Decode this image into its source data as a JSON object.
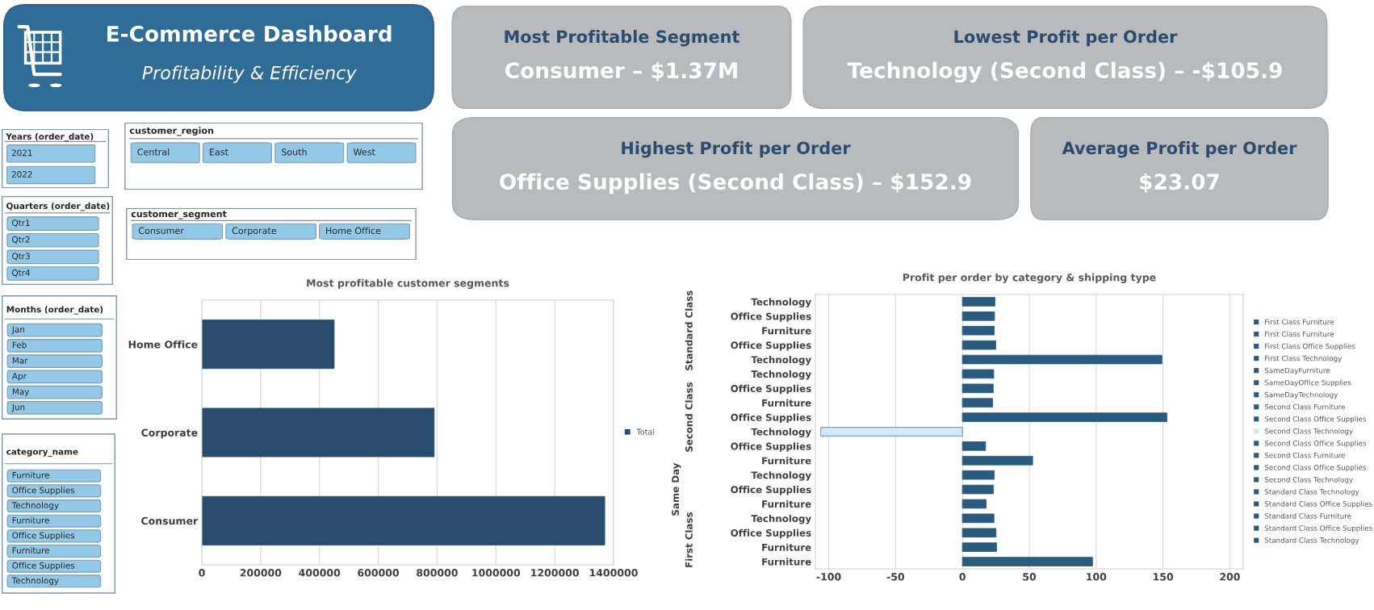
{
  "chart_data": [
    {
      "type": "other",
      "title": "E-Commerce Dashboard",
      "subtitle": "Profitability & Efficiency"
    },
    {
      "type": "other",
      "title": "Most Profitable Segment",
      "annotations": [
        "Consumer – $1.37M"
      ]
    },
    {
      "type": "other",
      "title": "Lowest Profit per Order",
      "annotations": [
        "Technology (Second Class) – -$105.9"
      ]
    },
    {
      "type": "other",
      "title": "Highest Profit per Order",
      "annotations": [
        "Office Supplies (Second Class) – $152.9"
      ]
    },
    {
      "type": "other",
      "title": "Average Profit per Order",
      "annotations": [
        "$23.07"
      ]
    },
    {
      "type": "other",
      "title": "Years (order_date)",
      "annotations": [
        "2021",
        "2022"
      ]
    },
    {
      "type": "other",
      "title": "customer_region",
      "annotations": [
        "Central",
        "East",
        "South",
        "West"
      ]
    },
    {
      "type": "other",
      "title": "Quarters (order_date)",
      "annotations": [
        "Qtr1",
        "Qtr2",
        "Qtr3",
        "Qtr4"
      ]
    },
    {
      "type": "other",
      "title": "customer_segment",
      "annotations": [
        "Consumer",
        "Corporate",
        "Home Office"
      ]
    },
    {
      "type": "other",
      "title": "Months (order_date)",
      "annotations": [
        "Jan",
        "Feb",
        "Mar",
        "Apr",
        "May",
        "Jun"
      ]
    },
    {
      "type": "other",
      "title": "category_name",
      "annotations": [
        "Furniture",
        "Office Supplies",
        "Technology",
        "Furniture",
        "Office Supplies",
        "Furniture",
        "Office Supplies",
        "Technology"
      ]
    },
    {
      "type": "bar",
      "orientation": "horizontal",
      "title": "Most profitable customer segments",
      "categories": [
        "Home Office",
        "Corporate",
        "Consumer"
      ],
      "series": [
        {
          "name": "Total",
          "color": "#284b6e",
          "values": [
            450000,
            790000,
            1370000
          ]
        }
      ],
      "xlim": [
        0,
        1400000
      ],
      "xticks": [
        0,
        200000,
        400000,
        600000,
        800000,
        1000000,
        1200000,
        1400000
      ],
      "grid": "x",
      "legend": "right"
    },
    {
      "type": "bar",
      "orientation": "horizontal",
      "title": "Profit per order by category & shipping type",
      "categories": [
        "Technology",
        "Office Supplies",
        "Furniture",
        "Office Supplies",
        "Technology",
        "Technology",
        "Office Supplies",
        "Furniture",
        "Office Supplies",
        "Technology",
        "Office Supplies",
        "Furniture",
        "Technology",
        "Office Supplies",
        "Furniture",
        "Technology",
        "Office Supplies",
        "Furniture",
        "Furniture"
      ],
      "series": [
        {
          "name": "First Class Furniture",
          "color": "#2a5a7e",
          "values": [
            null,
            null,
            null,
            null,
            null,
            null,
            null,
            null,
            null,
            null,
            null,
            null,
            null,
            null,
            null,
            null,
            null,
            null,
            97.3
          ]
        },
        {
          "name": "First Class Furniture",
          "color": "#2a5a7e",
          "values": [
            null,
            null,
            null,
            null,
            null,
            null,
            null,
            null,
            null,
            null,
            null,
            null,
            null,
            null,
            null,
            null,
            null,
            25.5,
            null
          ]
        },
        {
          "name": "First Class Office Supplies",
          "color": "#2a5a7e",
          "values": [
            null,
            null,
            null,
            null,
            null,
            null,
            null,
            null,
            null,
            null,
            null,
            null,
            null,
            null,
            null,
            null,
            25.1,
            null,
            null
          ]
        },
        {
          "name": "First Class Technology",
          "color": "#2a5a7e",
          "values": [
            null,
            null,
            null,
            null,
            null,
            null,
            null,
            null,
            null,
            null,
            null,
            null,
            null,
            null,
            null,
            23.6,
            null,
            null,
            null
          ]
        },
        {
          "name": "SameDayFurniture",
          "color": "#2a5a7e",
          "values": [
            null,
            null,
            null,
            null,
            null,
            null,
            null,
            null,
            null,
            null,
            null,
            null,
            null,
            null,
            17.7,
            null,
            null,
            null,
            null
          ]
        },
        {
          "name": "SameDayOffice Supplies",
          "color": "#2a5a7e",
          "values": [
            null,
            null,
            null,
            null,
            null,
            null,
            null,
            null,
            null,
            null,
            null,
            null,
            null,
            23.2,
            null,
            null,
            null,
            null,
            null
          ]
        },
        {
          "name": "SameDayTechnology",
          "color": "#2a5a7e",
          "values": [
            null,
            null,
            null,
            null,
            null,
            null,
            null,
            null,
            null,
            null,
            null,
            null,
            23.8,
            null,
            null,
            null,
            null,
            null,
            null
          ]
        },
        {
          "name": "Second Class Furniture",
          "color": "#2a5a7e",
          "values": [
            null,
            null,
            null,
            null,
            null,
            null,
            null,
            null,
            null,
            null,
            null,
            52.5,
            null,
            null,
            null,
            null,
            null,
            null,
            null
          ]
        },
        {
          "name": "Second Class Office Supplies",
          "color": "#2a5a7e",
          "values": [
            null,
            null,
            null,
            null,
            null,
            null,
            null,
            null,
            null,
            null,
            17.3,
            null,
            null,
            null,
            null,
            null,
            null,
            null,
            null
          ]
        },
        {
          "name": "Second Class Technology",
          "color": "#d4e9f5",
          "values": [
            null,
            null,
            null,
            null,
            null,
            null,
            null,
            null,
            null,
            -105.9,
            null,
            null,
            null,
            null,
            null,
            null,
            null,
            null,
            null
          ]
        },
        {
          "name": "Second Class Office Supplies",
          "color": "#2a5a7e",
          "values": [
            null,
            null,
            null,
            null,
            null,
            null,
            null,
            null,
            152.9,
            null,
            null,
            null,
            null,
            null,
            null,
            null,
            null,
            null,
            null
          ]
        },
        {
          "name": "Second Class Furniture",
          "color": "#2a5a7e",
          "values": [
            null,
            null,
            null,
            null,
            null,
            null,
            null,
            22.6,
            null,
            null,
            null,
            null,
            null,
            null,
            null,
            null,
            null,
            null,
            null
          ]
        },
        {
          "name": "Second Class Office Supplies",
          "color": "#2a5a7e",
          "values": [
            null,
            null,
            null,
            null,
            null,
            null,
            23.0,
            null,
            null,
            null,
            null,
            null,
            null,
            null,
            null,
            null,
            null,
            null,
            null
          ]
        },
        {
          "name": "Second Class Technology",
          "color": "#2a5a7e",
          "values": [
            null,
            null,
            null,
            null,
            null,
            23.4,
            null,
            null,
            null,
            null,
            null,
            null,
            null,
            null,
            null,
            null,
            null,
            null,
            null
          ]
        },
        {
          "name": "Standard Class Technology",
          "color": "#2a5a7e",
          "values": [
            null,
            null,
            null,
            null,
            149.2,
            null,
            null,
            null,
            null,
            null,
            null,
            null,
            null,
            null,
            null,
            null,
            null,
            null,
            null
          ]
        },
        {
          "name": "Standard Class Office Supplies",
          "color": "#2a5a7e",
          "values": [
            null,
            null,
            null,
            24.9,
            null,
            null,
            null,
            null,
            null,
            null,
            null,
            null,
            null,
            null,
            null,
            null,
            null,
            null,
            null
          ]
        },
        {
          "name": "Standard Class Furniture",
          "color": "#2a5a7e",
          "values": [
            null,
            null,
            23.8,
            null,
            null,
            null,
            null,
            null,
            null,
            null,
            null,
            null,
            null,
            null,
            null,
            null,
            null,
            null,
            null
          ]
        },
        {
          "name": "Standard Class Office Supplies",
          "color": "#2a5a7e",
          "values": [
            null,
            24.0,
            null,
            null,
            null,
            null,
            null,
            null,
            null,
            null,
            null,
            null,
            null,
            null,
            null,
            null,
            null,
            null,
            null
          ]
        },
        {
          "name": "Standard Class Technology",
          "color": "#2a5a7e",
          "values": [
            24.3,
            null,
            null,
            null,
            null,
            null,
            null,
            null,
            null,
            null,
            null,
            null,
            null,
            null,
            null,
            null,
            null,
            null,
            null
          ]
        }
      ],
      "annotations": [
        "Standard Class",
        "Second Class",
        "Same Day",
        "First Class"
      ],
      "xlim": [
        -110,
        210
      ],
      "xticks": [
        -100,
        -50,
        0,
        50,
        100,
        150,
        200
      ],
      "grid": "x",
      "legend": "right"
    }
  ]
}
